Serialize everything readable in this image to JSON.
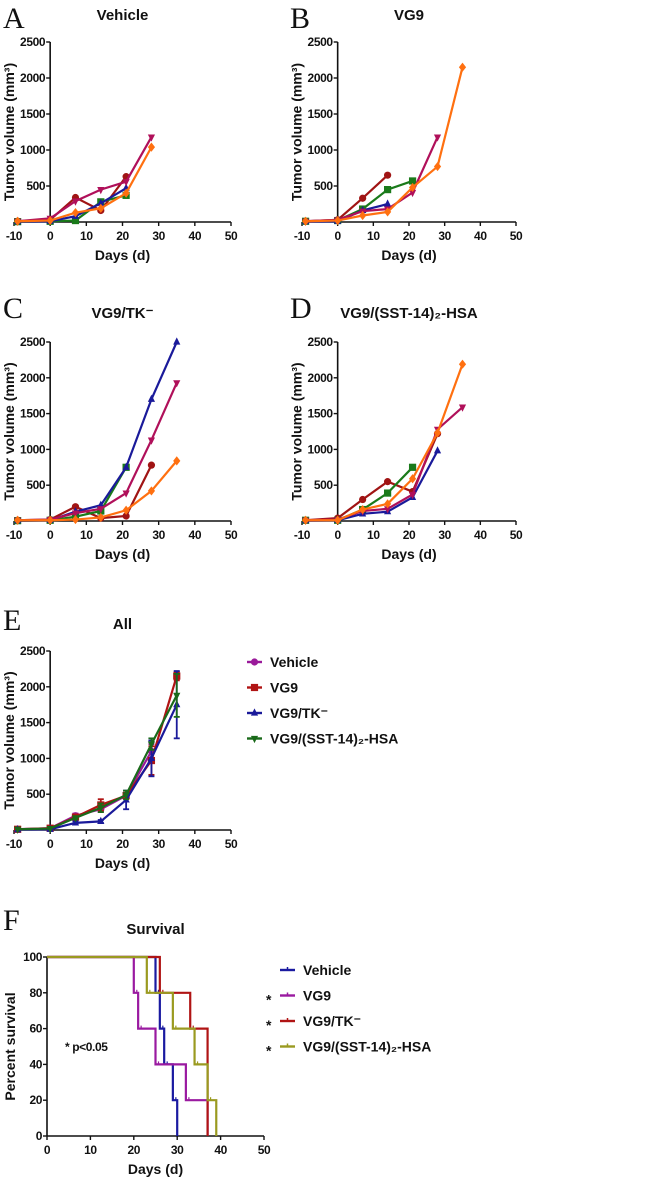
{
  "chart_data": [
    {
      "panel": "A",
      "title": "Vehicle",
      "type": "line",
      "xlabel": "Days (d)",
      "ylabel": "Tumor volume (mm³)",
      "xlim": [
        -10,
        50
      ],
      "ylim": [
        0,
        2500
      ],
      "xticks": [
        -10,
        0,
        10,
        20,
        30,
        40,
        50
      ],
      "yticks": [
        500,
        1000,
        1500,
        2000,
        2500
      ],
      "series": [
        {
          "marker": "circle",
          "color": "#a01414",
          "x": [
            -9,
            0,
            7,
            14,
            21
          ],
          "y": [
            10,
            30,
            340,
            160,
            630
          ]
        },
        {
          "marker": "square",
          "color": "#1a7a1a",
          "x": [
            -9,
            0,
            7,
            14,
            21
          ],
          "y": [
            5,
            10,
            20,
            280,
            370
          ]
        },
        {
          "marker": "triangle-up",
          "color": "#1a1a9a",
          "x": [
            -9,
            0,
            7,
            14,
            21
          ],
          "y": [
            5,
            10,
            80,
            260,
            470
          ]
        },
        {
          "marker": "triangle-down",
          "color": "#b0105a",
          "x": [
            -9,
            0,
            7,
            14,
            21,
            28
          ],
          "y": [
            10,
            50,
            290,
            450,
            560,
            1180
          ]
        },
        {
          "marker": "diamond",
          "color": "#ff7010",
          "x": [
            -9,
            0,
            7,
            14,
            21,
            28
          ],
          "y": [
            10,
            20,
            130,
            190,
            400,
            1040
          ]
        }
      ]
    },
    {
      "panel": "B",
      "title": "VG9",
      "type": "line",
      "xlabel": "Days (d)",
      "ylabel": "Tumor volume (mm³)",
      "xlim": [
        -10,
        50
      ],
      "ylim": [
        0,
        2500
      ],
      "xticks": [
        -10,
        0,
        10,
        20,
        30,
        40,
        50
      ],
      "yticks": [
        500,
        1000,
        1500,
        2000,
        2500
      ],
      "series": [
        {
          "marker": "circle",
          "color": "#a01414",
          "x": [
            -9,
            0,
            7,
            14
          ],
          "y": [
            10,
            30,
            330,
            650
          ]
        },
        {
          "marker": "square",
          "color": "#1a7a1a",
          "x": [
            -9,
            0,
            7,
            14,
            21
          ],
          "y": [
            10,
            20,
            180,
            450,
            570
          ]
        },
        {
          "marker": "triangle-up",
          "color": "#1a1a9a",
          "x": [
            -9,
            0,
            7,
            14
          ],
          "y": [
            5,
            10,
            160,
            250
          ]
        },
        {
          "marker": "triangle-down",
          "color": "#b0105a",
          "x": [
            -9,
            0,
            7,
            14,
            21,
            28
          ],
          "y": [
            10,
            30,
            150,
            180,
            410,
            1180
          ]
        },
        {
          "marker": "diamond",
          "color": "#ff7010",
          "x": [
            -9,
            0,
            7,
            14,
            21,
            28,
            35
          ],
          "y": [
            10,
            20,
            90,
            140,
            480,
            770,
            2150
          ]
        }
      ]
    },
    {
      "panel": "C",
      "title": "VG9/TK⁻",
      "type": "line",
      "xlabel": "Days (d)",
      "ylabel": "Tumor volume (mm³)",
      "xlim": [
        -10,
        50
      ],
      "ylim": [
        0,
        2500
      ],
      "xticks": [
        -10,
        0,
        10,
        20,
        30,
        40,
        50
      ],
      "yticks": [
        500,
        1000,
        1500,
        2000,
        2500
      ],
      "series": [
        {
          "marker": "circle",
          "color": "#a01414",
          "x": [
            -9,
            0,
            7,
            14,
            21,
            28
          ],
          "y": [
            10,
            20,
            200,
            40,
            70,
            780
          ]
        },
        {
          "marker": "square",
          "color": "#1a7a1a",
          "x": [
            -9,
            0,
            7,
            14,
            21
          ],
          "y": [
            5,
            10,
            60,
            140,
            750
          ]
        },
        {
          "marker": "triangle-up",
          "color": "#1a1a9a",
          "x": [
            -9,
            0,
            7,
            14,
            21,
            28,
            35
          ],
          "y": [
            5,
            10,
            130,
            220,
            750,
            1700,
            2500
          ]
        },
        {
          "marker": "triangle-down",
          "color": "#b0105a",
          "x": [
            -9,
            0,
            7,
            14,
            21,
            28,
            35
          ],
          "y": [
            10,
            20,
            110,
            170,
            390,
            1130,
            1930
          ]
        },
        {
          "marker": "diamond",
          "color": "#ff7010",
          "x": [
            -9,
            0,
            7,
            14,
            21,
            28,
            35
          ],
          "y": [
            10,
            10,
            20,
            50,
            150,
            420,
            840
          ]
        }
      ]
    },
    {
      "panel": "D",
      "title": "VG9/(SST-14)₂-HSA",
      "type": "line",
      "xlabel": "Days (d)",
      "ylabel": "Tumor volume (mm³)",
      "xlim": [
        -10,
        50
      ],
      "ylim": [
        0,
        2500
      ],
      "xticks": [
        -10,
        0,
        10,
        20,
        30,
        40,
        50
      ],
      "yticks": [
        500,
        1000,
        1500,
        2000,
        2500
      ],
      "series": [
        {
          "marker": "circle",
          "color": "#a01414",
          "x": [
            -9,
            0,
            7,
            14,
            21,
            28
          ],
          "y": [
            10,
            40,
            300,
            550,
            410,
            1220
          ]
        },
        {
          "marker": "square",
          "color": "#1a7a1a",
          "x": [
            -9,
            0,
            7,
            14,
            21
          ],
          "y": [
            10,
            10,
            160,
            390,
            750
          ]
        },
        {
          "marker": "triangle-up",
          "color": "#1a1a9a",
          "x": [
            -9,
            0,
            7,
            14,
            21,
            28
          ],
          "y": [
            5,
            10,
            100,
            130,
            330,
            980
          ]
        },
        {
          "marker": "triangle-down",
          "color": "#b0105a",
          "x": [
            -9,
            0,
            7,
            14,
            21,
            28,
            35
          ],
          "y": [
            10,
            20,
            140,
            170,
            370,
            1280,
            1590
          ]
        },
        {
          "marker": "diamond",
          "color": "#ff7010",
          "x": [
            -9,
            0,
            7,
            14,
            21,
            28,
            35
          ],
          "y": [
            10,
            10,
            160,
            240,
            590,
            1230,
            2190
          ]
        }
      ]
    },
    {
      "panel": "E",
      "title": "All",
      "type": "line",
      "xlabel": "Days (d)",
      "ylabel": "Tumor volume (mm³)",
      "xlim": [
        -10,
        50
      ],
      "ylim": [
        0,
        2500
      ],
      "xticks": [
        -10,
        0,
        10,
        20,
        30,
        40,
        50
      ],
      "yticks": [
        500,
        1000,
        1500,
        2000,
        2500
      ],
      "legend": "right",
      "series": [
        {
          "name": "Vehicle",
          "marker": "circle",
          "color": "#9a1a9a",
          "x": [
            -9,
            0,
            7,
            14,
            21,
            28
          ],
          "y": [
            10,
            25,
            200,
            290,
            480,
            1100
          ],
          "err": [
            0,
            0,
            30,
            40,
            40,
            100
          ]
        },
        {
          "name": "VG9",
          "marker": "square",
          "color": "#b01414",
          "x": [
            -9,
            0,
            7,
            14,
            21,
            28,
            35
          ],
          "y": [
            10,
            25,
            180,
            350,
            480,
            970,
            2150
          ],
          "err": [
            0,
            0,
            30,
            80,
            40,
            200,
            60
          ]
        },
        {
          "name": "VG9/TK⁻",
          "marker": "triangle-up",
          "color": "#1a1a9a",
          "x": [
            -9,
            0,
            7,
            14,
            21,
            28,
            35
          ],
          "y": [
            5,
            10,
            100,
            120,
            420,
            1000,
            1750
          ],
          "err": [
            0,
            0,
            20,
            20,
            130,
            250,
            470
          ]
        },
        {
          "name": "VG9/(SST-14)₂-HSA",
          "marker": "triangle-down",
          "color": "#1a6a1a",
          "x": [
            -9,
            0,
            7,
            14,
            21,
            28,
            35
          ],
          "y": [
            10,
            20,
            170,
            310,
            490,
            1200,
            1880
          ],
          "err": [
            0,
            0,
            20,
            60,
            60,
            80,
            300
          ]
        }
      ]
    },
    {
      "panel": "F",
      "title": "Survival",
      "type": "line",
      "subtype": "kaplan-meier",
      "xlabel": "Days (d)",
      "ylabel": "Percent survival",
      "xlim": [
        0,
        50
      ],
      "ylim": [
        0,
        100
      ],
      "xticks": [
        0,
        10,
        20,
        30,
        40,
        50
      ],
      "yticks": [
        0,
        20,
        40,
        60,
        80,
        100
      ],
      "legend": "right",
      "annotation": "* p<0.05",
      "series": [
        {
          "name": "Vehicle",
          "significance": "",
          "color": "#1a1aa0",
          "event_days": [
            25,
            26,
            27,
            29,
            30
          ],
          "survival_after": [
            80,
            60,
            40,
            20,
            0
          ]
        },
        {
          "name": "VG9",
          "significance": "*",
          "color": "#9a1aa0",
          "event_days": [
            20,
            21,
            25,
            32,
            37
          ],
          "survival_after": [
            80,
            60,
            40,
            20,
            0
          ]
        },
        {
          "name": "VG9/TK⁻",
          "significance": "*",
          "color": "#b01414",
          "event_days": [
            26,
            33,
            37
          ],
          "survival_after": [
            80,
            60,
            0
          ]
        },
        {
          "name": "VG9/(SST-14)₂-HSA",
          "significance": "*",
          "color": "#9a9a20",
          "event_days": [
            23,
            29,
            34,
            37,
            39
          ],
          "survival_after": [
            80,
            60,
            40,
            20,
            0
          ]
        }
      ]
    }
  ]
}
